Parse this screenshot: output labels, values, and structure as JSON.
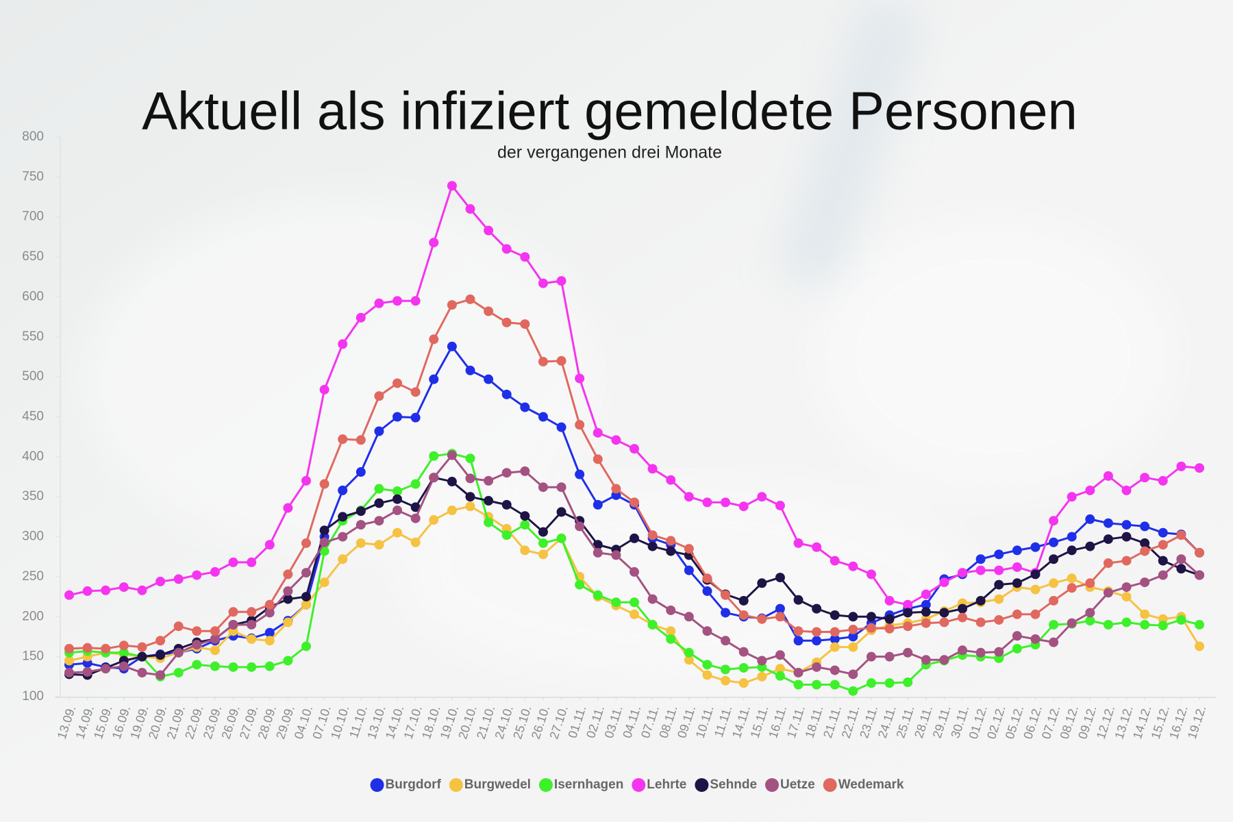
{
  "chart_data": {
    "type": "line",
    "title": "Aktuell als infiziert gemeldete Personen",
    "subtitle": "der vergangenen drei Monate",
    "categories": [
      "13.09.",
      "14.09.",
      "15.09.",
      "16.09.",
      "19.09.",
      "20.09.",
      "21.09.",
      "22.09.",
      "23.09.",
      "26.09.",
      "27.09.",
      "28.09.",
      "29.09.",
      "04.10.",
      "07.10.",
      "10.10.",
      "11.10.",
      "13.10.",
      "14.10.",
      "17.10.",
      "18.10.",
      "19.10.",
      "20.10.",
      "21.10.",
      "24.10.",
      "25.10.",
      "26.10.",
      "27.10.",
      "01.11.",
      "02.11.",
      "03.11.",
      "04.11.",
      "07.11.",
      "08.11.",
      "09.11.",
      "10.11.",
      "11.11.",
      "14.11.",
      "15.11.",
      "16.11.",
      "17.11.",
      "18.11.",
      "21.11.",
      "22.11.",
      "23.11.",
      "24.11.",
      "25.11.",
      "28.11.",
      "29.11.",
      "30.11.",
      "01.12.",
      "02.12.",
      "05.12.",
      "06.12.",
      "07.12.",
      "08.12.",
      "09.12.",
      "12.12.",
      "13.12.",
      "14.12.",
      "15.12.",
      "16.12.",
      "19.12."
    ],
    "ylim": [
      100,
      800
    ],
    "yticks": [
      100,
      150,
      200,
      250,
      300,
      350,
      400,
      450,
      500,
      550,
      600,
      650,
      700,
      750,
      800
    ],
    "legend": "bottom",
    "series": [
      {
        "name": "Burgdorf",
        "color": "#1f2fe8",
        "values": [
          140,
          142,
          137,
          135,
          150,
          153,
          155,
          160,
          170,
          176,
          173,
          180,
          195,
          215,
          300,
          358,
          381,
          432,
          450,
          449,
          497,
          538,
          508,
          497,
          478,
          462,
          450,
          437,
          378,
          340,
          352,
          340,
          298,
          290,
          258,
          232,
          205,
          200,
          198,
          210,
          170,
          170,
          172,
          175,
          192,
          202,
          210,
          215,
          247,
          253,
          272,
          278,
          283,
          287,
          293,
          300,
          322,
          317,
          315,
          313,
          305,
          303,
          280
        ]
      },
      {
        "name": "Burgwedel",
        "color": "#f5c242",
        "values": [
          145,
          150,
          155,
          153,
          150,
          148,
          155,
          162,
          158,
          182,
          172,
          170,
          193,
          215,
          243,
          272,
          292,
          290,
          305,
          293,
          321,
          333,
          338,
          325,
          310,
          283,
          278,
          298,
          250,
          225,
          214,
          203,
          190,
          182,
          146,
          127,
          120,
          117,
          125,
          135,
          130,
          143,
          162,
          162,
          183,
          189,
          192,
          197,
          207,
          217,
          218,
          222,
          237,
          234,
          242,
          248,
          237,
          232,
          225,
          203,
          197,
          200,
          163
        ]
      },
      {
        "name": "Isernhagen",
        "color": "#3ef02a",
        "values": [
          155,
          157,
          155,
          155,
          150,
          125,
          130,
          140,
          138,
          137,
          137,
          138,
          145,
          163,
          282,
          320,
          333,
          360,
          357,
          366,
          401,
          404,
          398,
          318,
          302,
          315,
          292,
          298,
          240,
          227,
          218,
          218,
          190,
          172,
          155,
          140,
          134,
          136,
          137,
          126,
          115,
          115,
          115,
          107,
          117,
          117,
          118,
          140,
          145,
          152,
          150,
          148,
          160,
          165,
          190,
          191,
          195,
          190,
          193,
          190,
          189,
          196,
          190
        ]
      },
      {
        "name": "Lehrte",
        "color": "#f534f0",
        "values": [
          227,
          232,
          233,
          237,
          233,
          244,
          247,
          252,
          256,
          268,
          268,
          290,
          336,
          370,
          484,
          541,
          574,
          592,
          595,
          595,
          668,
          739,
          710,
          683,
          660,
          650,
          617,
          620,
          498,
          430,
          421,
          410,
          385,
          371,
          350,
          343,
          343,
          338,
          350,
          339,
          292,
          287,
          270,
          263,
          253,
          220,
          215,
          228,
          243,
          255,
          258,
          258,
          262,
          255,
          320,
          350,
          358,
          376,
          358,
          374,
          370,
          388,
          386
        ]
      },
      {
        "name": "Sehnde",
        "color": "#1e1446",
        "values": [
          128,
          127,
          136,
          145,
          150,
          152,
          160,
          168,
          172,
          190,
          195,
          212,
          222,
          225,
          308,
          325,
          332,
          342,
          347,
          337,
          374,
          369,
          350,
          345,
          340,
          326,
          306,
          331,
          320,
          290,
          284,
          298,
          288,
          282,
          277,
          246,
          228,
          220,
          242,
          249,
          221,
          210,
          202,
          200,
          200,
          197,
          205,
          206,
          205,
          210,
          220,
          240,
          242,
          253,
          272,
          283,
          288,
          297,
          300,
          292,
          270,
          260,
          252
        ]
      },
      {
        "name": "Uetze",
        "color": "#a45282",
        "values": [
          130,
          131,
          135,
          138,
          130,
          127,
          155,
          165,
          172,
          190,
          190,
          205,
          232,
          255,
          293,
          300,
          315,
          320,
          333,
          323,
          374,
          402,
          373,
          370,
          380,
          382,
          362,
          362,
          313,
          280,
          277,
          256,
          222,
          208,
          200,
          182,
          170,
          156,
          145,
          152,
          130,
          137,
          133,
          128,
          150,
          150,
          155,
          146,
          146,
          158,
          155,
          156,
          176,
          172,
          168,
          192,
          205,
          230,
          237,
          243,
          252,
          272,
          252
        ]
      },
      {
        "name": "Wedemark",
        "color": "#e0685f",
        "values": [
          160,
          161,
          160,
          164,
          162,
          170,
          188,
          182,
          182,
          206,
          206,
          215,
          253,
          292,
          366,
          422,
          421,
          476,
          492,
          481,
          547,
          590,
          597,
          582,
          568,
          566,
          519,
          520,
          440,
          397,
          360,
          343,
          302,
          295,
          285,
          248,
          227,
          202,
          197,
          200,
          182,
          181,
          181,
          184,
          186,
          185,
          188,
          192,
          193,
          199,
          193,
          196,
          203,
          203,
          220,
          236,
          242,
          267,
          270,
          282,
          290,
          302,
          280
        ]
      }
    ]
  }
}
